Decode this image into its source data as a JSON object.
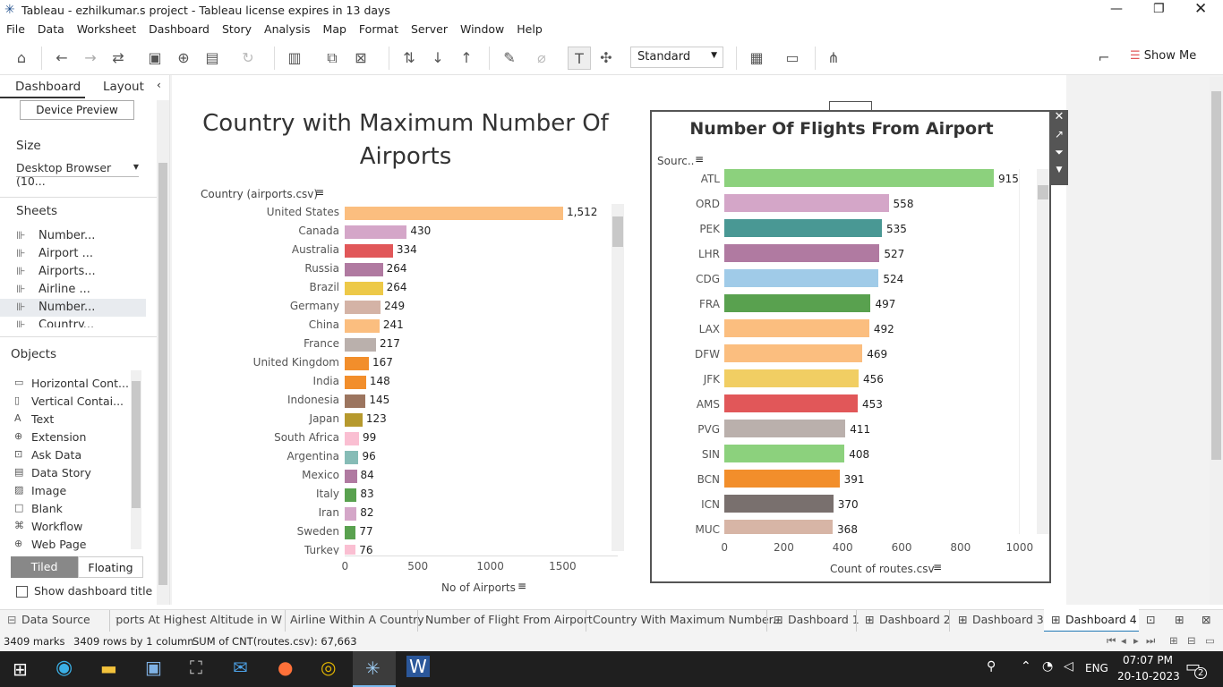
{
  "window": {
    "title": "Tableau - ezhilkumar.s project - Tableau license expires in 13 days"
  },
  "menu": [
    "File",
    "Data",
    "Worksheet",
    "Dashboard",
    "Story",
    "Analysis",
    "Map",
    "Format",
    "Server",
    "Window",
    "Help"
  ],
  "toolbar": {
    "view_mode": "Standard",
    "show_me": "Show Me"
  },
  "sidebar": {
    "tab_dashboard": "Dashboard",
    "tab_layout": "Layout",
    "device_preview": "Device Preview",
    "size_title": "Size",
    "size_value": "Desktop Browser (10...",
    "sheets_title": "Sheets",
    "sheets": [
      "Number...",
      "Airport ...",
      "Airports...",
      "Airline ...",
      "Number...",
      "Country..."
    ],
    "objects_title": "Objects",
    "objects": [
      "Horizontal Cont...",
      "Vertical Contai...",
      "Text",
      "Extension",
      "Ask Data",
      "Data Story",
      "Image",
      "Blank",
      "Workflow",
      "Web Page"
    ],
    "tiled": "Tiled",
    "floating": "Floating",
    "show_title": "Show dashboard title"
  },
  "left_chart": {
    "title_line1": "Country with Maximum Number Of",
    "title_line2": "Airports",
    "row_header": "Country (airports.csv)",
    "x_label": "No of Airports",
    "x_ticks": [
      "0",
      "500",
      "1000",
      "1500"
    ]
  },
  "right_chart": {
    "title": "Number Of Flights From Airport",
    "row_header": "Sourc..",
    "x_label": "Count of routes.csv",
    "x_ticks": [
      "0",
      "200",
      "400",
      "600",
      "800",
      "1000"
    ]
  },
  "chart_data": [
    {
      "type": "bar",
      "title": "Country with Maximum Number Of Airports",
      "ylabel": "Country (airports.csv)",
      "xlabel": "No of Airports",
      "categories": [
        "United States",
        "Canada",
        "Australia",
        "Russia",
        "Brazil",
        "Germany",
        "China",
        "France",
        "United Kingdom",
        "India",
        "Indonesia",
        "Japan",
        "South Africa",
        "Argentina",
        "Mexico",
        "Italy",
        "Iran",
        "Sweden",
        "Turkey"
      ],
      "values": [
        1512,
        430,
        334,
        264,
        264,
        249,
        241,
        217,
        167,
        148,
        145,
        123,
        99,
        96,
        84,
        83,
        82,
        77,
        76
      ],
      "value_labels": [
        "1,512",
        "430",
        "334",
        "264",
        "264",
        "249",
        "241",
        "217",
        "167",
        "148",
        "145",
        "123",
        "99",
        "96",
        "84",
        "83",
        "82",
        "77",
        "76"
      ],
      "colors": [
        "#fbbe7f",
        "#d4a6c8",
        "#e15759",
        "#b07aa1",
        "#edc948",
        "#d4b3a6",
        "#fbbe7f",
        "#bab0ac",
        "#f28e2b",
        "#f28e2b",
        "#9c755f",
        "#b6992d",
        "#fabfd2",
        "#86bcb6",
        "#b07aa1",
        "#59a14f",
        "#d4a6c8",
        "#59a14f",
        "#fabfd2"
      ],
      "xlim": [
        0,
        1650
      ]
    },
    {
      "type": "bar",
      "title": "Number Of Flights From Airport",
      "ylabel": "Sourc..",
      "xlabel": "Count of routes.csv",
      "categories": [
        "ATL",
        "ORD",
        "PEK",
        "LHR",
        "CDG",
        "FRA",
        "LAX",
        "DFW",
        "JFK",
        "AMS",
        "PVG",
        "SIN",
        "BCN",
        "ICN",
        "MUC"
      ],
      "values": [
        915,
        558,
        535,
        527,
        524,
        497,
        492,
        469,
        456,
        453,
        411,
        408,
        391,
        370,
        368
      ],
      "colors": [
        "#8cd17d",
        "#d4a6c8",
        "#499894",
        "#b07aa1",
        "#a0cbe8",
        "#59a14f",
        "#fbbe7f",
        "#fbbe7f",
        "#f1ce63",
        "#e15759",
        "#bab0ac",
        "#8cd17d",
        "#f28e2b",
        "#79706e",
        "#d7b5a6"
      ],
      "xlim": [
        0,
        1000
      ]
    }
  ],
  "tabs": [
    "Data Source",
    "irports At Highest Altitude in W...",
    "Airline Within A Country",
    "Number of Flight From Airport",
    "Country With Maximum Number...",
    "Dashboard 1",
    "Dashboard 2",
    "Dashboard 3",
    "Dashboard 4"
  ],
  "status": {
    "marks": "3409 marks",
    "rows": "3409 rows by 1 column",
    "sum": "SUM of CNT(routes.csv): 67,663"
  },
  "taskbar": {
    "lang": "ENG",
    "time": "07:07 PM",
    "date": "20-10-2023",
    "notif": "2"
  }
}
